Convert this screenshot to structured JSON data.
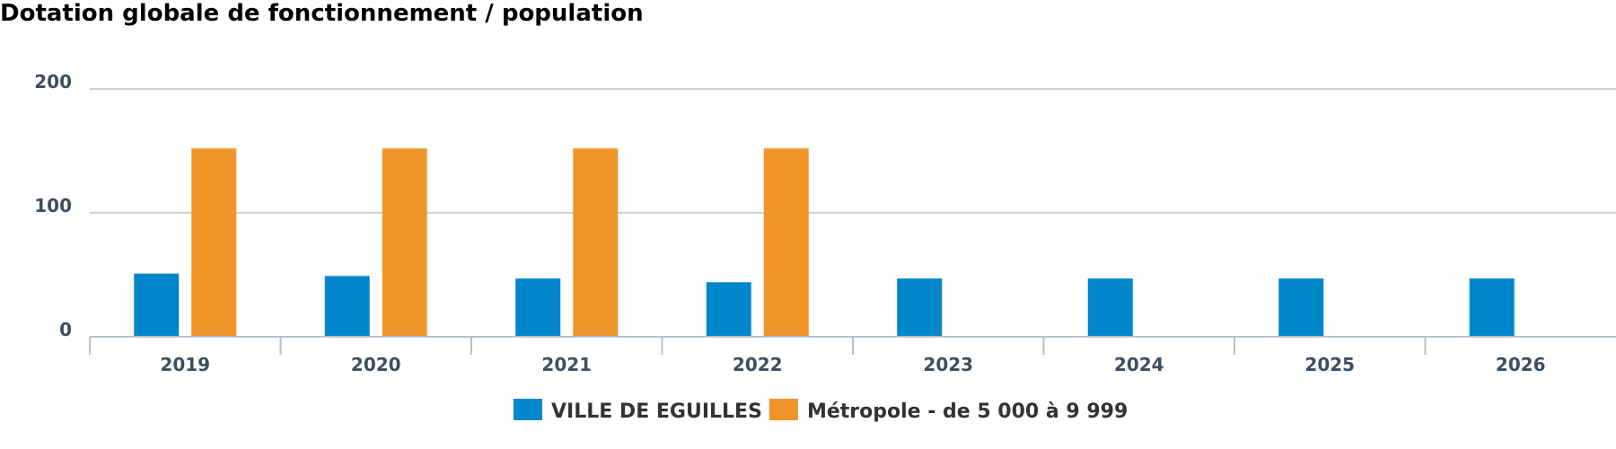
{
  "chart_data": {
    "type": "bar",
    "title": "Dotation globale de fonctionnement / population",
    "categories": [
      "2019",
      "2020",
      "2021",
      "2022",
      "2023",
      "2024",
      "2025",
      "2026"
    ],
    "series": [
      {
        "name": "VILLE DE EGUILLES",
        "color": "#0387cc",
        "values": [
          51,
          49,
          47,
          44,
          47,
          47,
          47,
          47
        ]
      },
      {
        "name": "Métropole - de 5 000 à 9 999",
        "color": "#f0952a",
        "values": [
          152,
          152,
          152,
          152,
          null,
          null,
          null,
          null
        ]
      }
    ],
    "yticks": [
      0,
      100,
      200
    ],
    "ylim": [
      0,
      200
    ],
    "grid": true,
    "legend": "bottom-center",
    "xlabel": "",
    "ylabel": ""
  }
}
